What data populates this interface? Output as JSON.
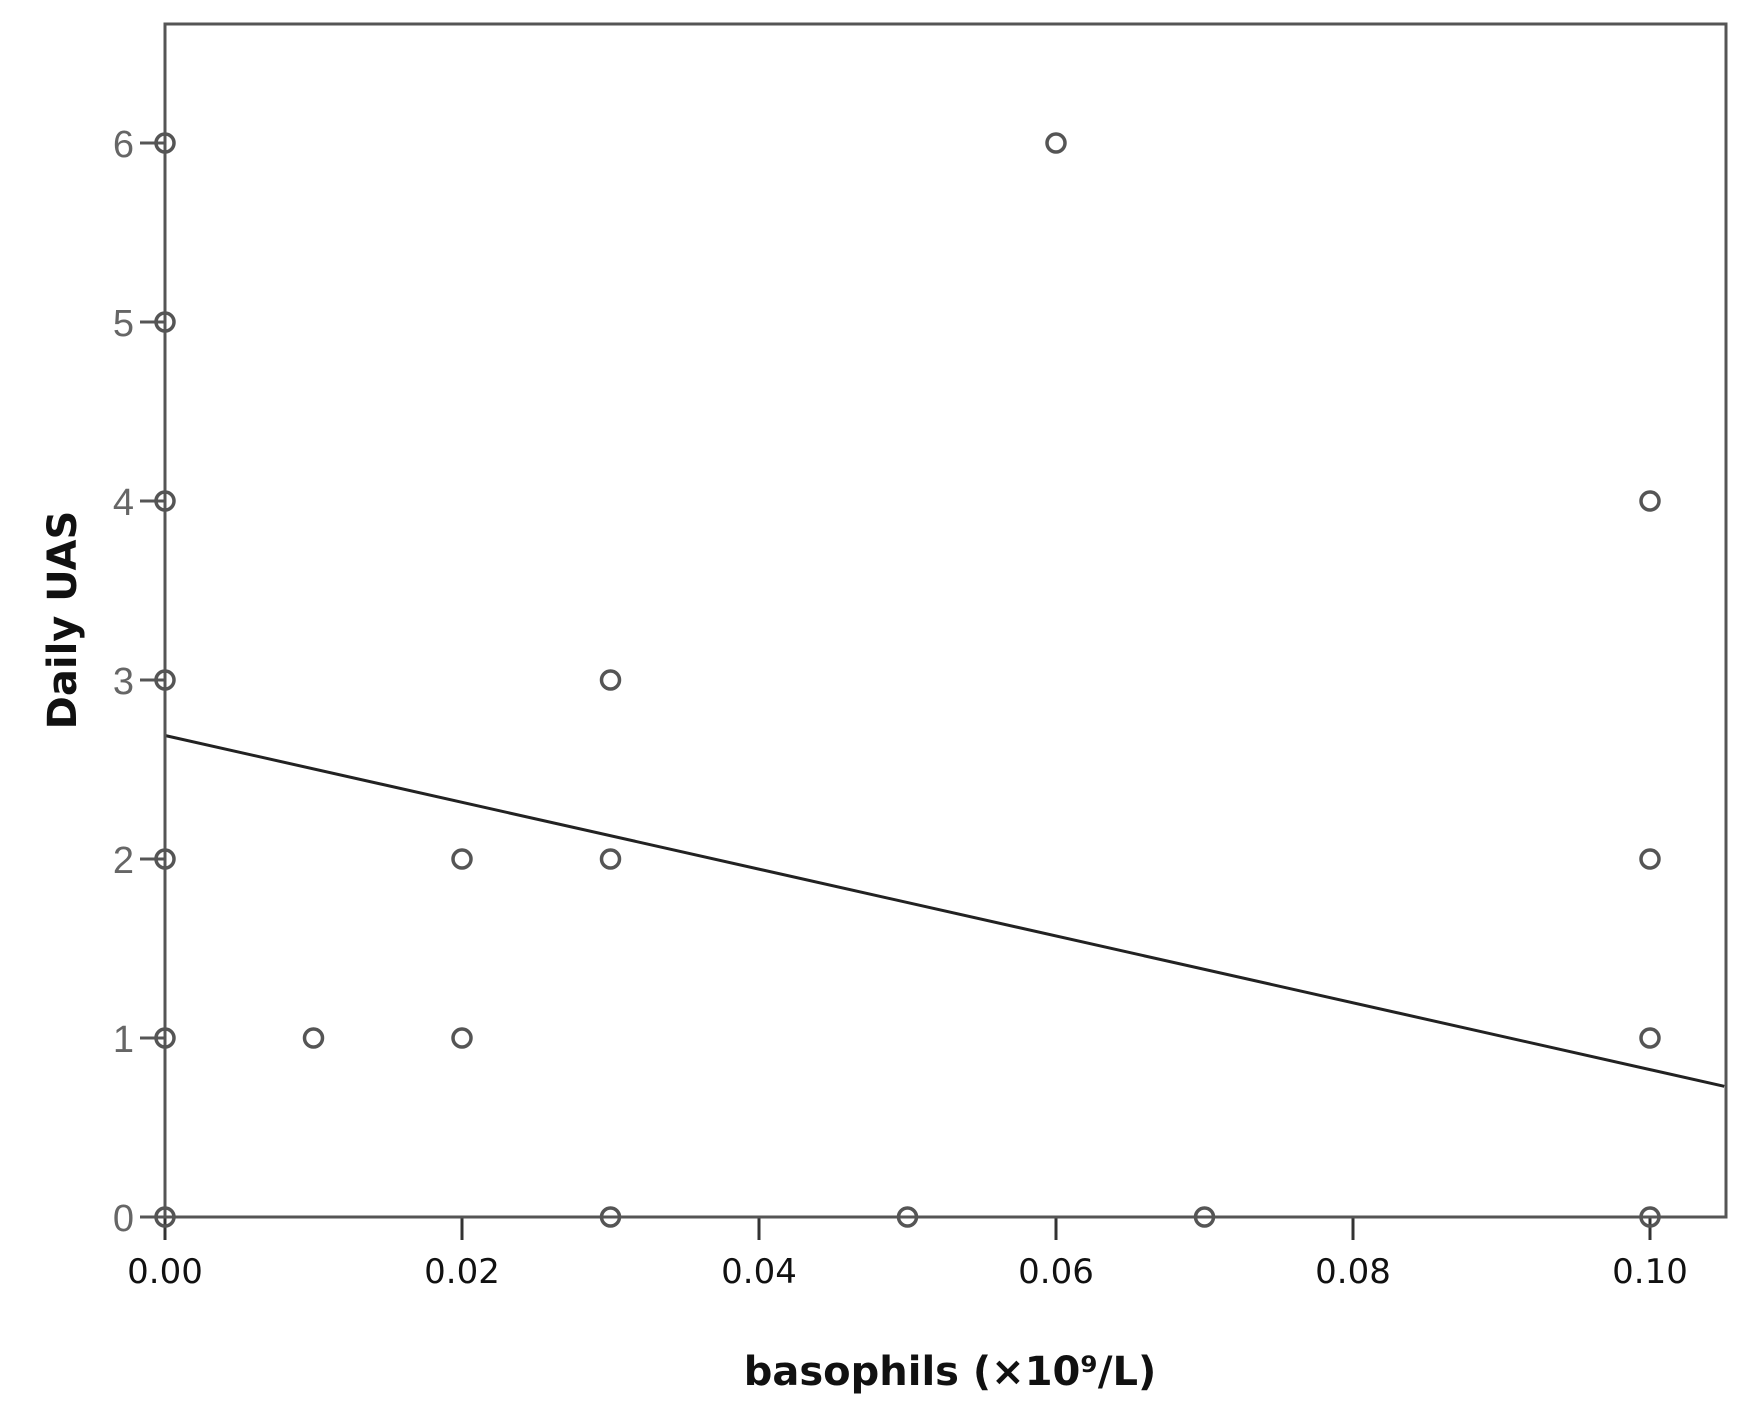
{
  "chart_data": {
    "type": "scatter",
    "title": "",
    "xlabel": "basophils (×10⁹/L)",
    "ylabel": "Daily UAS",
    "xlim": [
      0.0,
      0.105
    ],
    "ylim": [
      0,
      6.6
    ],
    "x_ticks": [
      "0.00",
      "0.02",
      "0.04",
      "0.06",
      "0.08",
      "0.10"
    ],
    "y_ticks": [
      "0",
      "1",
      "2",
      "3",
      "4",
      "5",
      "6"
    ],
    "grid": false,
    "legend": null,
    "points": [
      {
        "x": 0.0,
        "y": 0
      },
      {
        "x": 0.0,
        "y": 1
      },
      {
        "x": 0.0,
        "y": 2
      },
      {
        "x": 0.0,
        "y": 3
      },
      {
        "x": 0.0,
        "y": 4
      },
      {
        "x": 0.0,
        "y": 5
      },
      {
        "x": 0.0,
        "y": 6
      },
      {
        "x": 0.01,
        "y": 1
      },
      {
        "x": 0.02,
        "y": 1
      },
      {
        "x": 0.02,
        "y": 2
      },
      {
        "x": 0.03,
        "y": 0
      },
      {
        "x": 0.03,
        "y": 2
      },
      {
        "x": 0.03,
        "y": 3
      },
      {
        "x": 0.05,
        "y": 0
      },
      {
        "x": 0.06,
        "y": 6
      },
      {
        "x": 0.07,
        "y": 0
      },
      {
        "x": 0.1,
        "y": 0
      },
      {
        "x": 0.1,
        "y": 1
      },
      {
        "x": 0.1,
        "y": 2
      },
      {
        "x": 0.1,
        "y": 4
      }
    ],
    "fit_line": {
      "type": "linear",
      "x0": 0.0,
      "y0": 2.69,
      "x1": 0.105,
      "y1": 0.73
    },
    "colors": {
      "marker": "#555555",
      "line": "#222222",
      "axis": "#555555"
    }
  }
}
